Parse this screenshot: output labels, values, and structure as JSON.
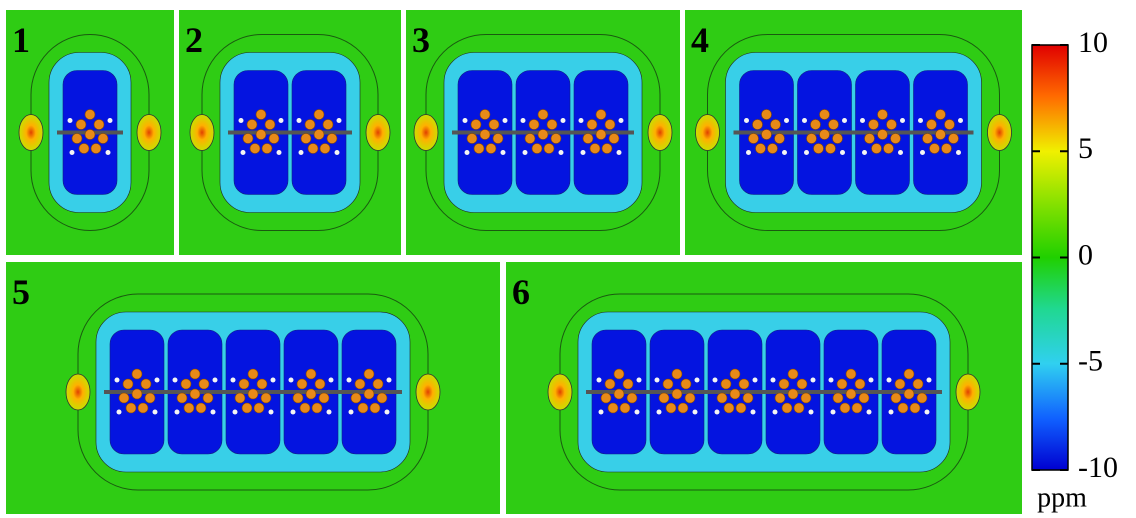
{
  "panels": [
    {
      "label": "1"
    },
    {
      "label": "2"
    },
    {
      "label": "3"
    },
    {
      "label": "4"
    },
    {
      "label": "5"
    },
    {
      "label": "6"
    }
  ],
  "colorbar": {
    "lim": [
      -10,
      10
    ],
    "ticks": [
      10,
      5,
      0,
      -5,
      -10
    ],
    "unit": "ppm"
  }
}
